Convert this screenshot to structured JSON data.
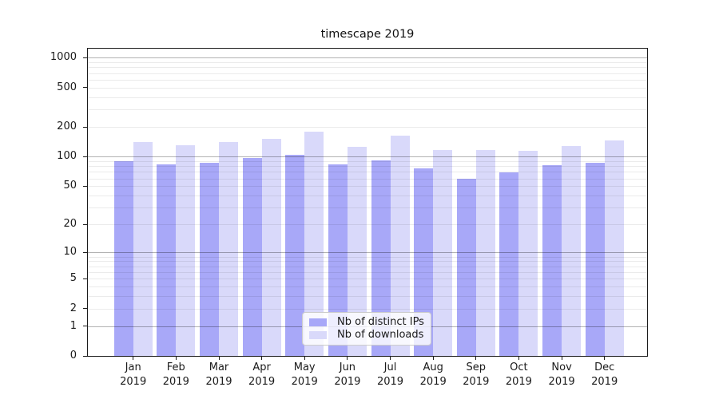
{
  "title": "timescape 2019",
  "chart_data": {
    "type": "bar",
    "title": "timescape 2019",
    "categories": [
      "Jan\n2019",
      "Feb\n2019",
      "Mar\n2019",
      "Apr\n2019",
      "May\n2019",
      "Jun\n2019",
      "Jul\n2019",
      "Aug\n2019",
      "Sep\n2019",
      "Oct\n2019",
      "Nov\n2019",
      "Dec\n2019"
    ],
    "series": [
      {
        "name": "Nb of distinct IPs",
        "color": "#a8a8f8",
        "values": [
          90,
          84,
          87,
          98,
          104,
          84,
          91,
          76,
          60,
          69,
          82,
          86
        ]
      },
      {
        "name": "Nb of downloads",
        "color": "#d9d9fa",
        "values": [
          142,
          131,
          140,
          151,
          179,
          125,
          164,
          117,
          117,
          114,
          128,
          146
        ]
      }
    ],
    "y_axis": {
      "scale": "symlog",
      "ticks": [
        0,
        1,
        2,
        5,
        10,
        20,
        50,
        100,
        200,
        500,
        1000
      ],
      "major_gridlines": [
        1,
        10,
        100,
        1000
      ],
      "range_max": 1233
    },
    "legend_position": "lower center",
    "grid": true
  }
}
